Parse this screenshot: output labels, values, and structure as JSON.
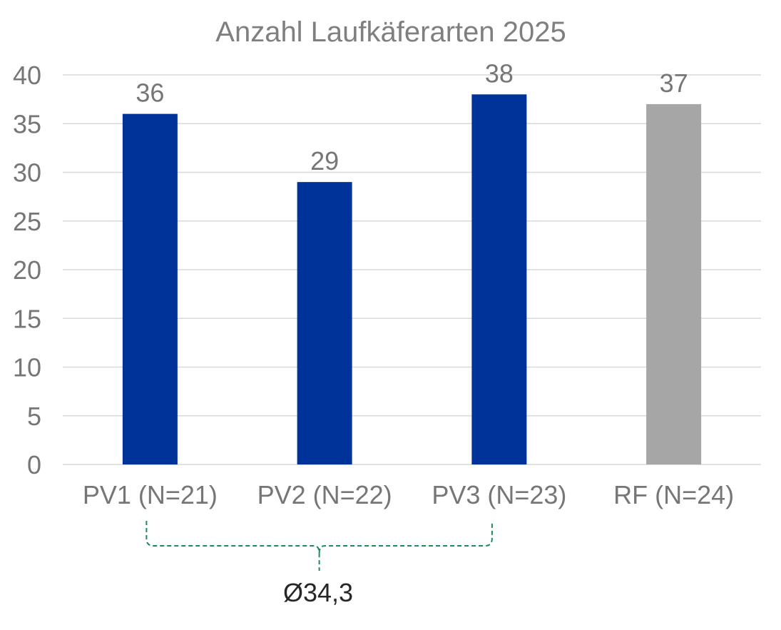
{
  "chart_data": {
    "type": "bar",
    "title": "Anzahl Laufkäferarten 2025",
    "xlabel": "",
    "ylabel": "",
    "categories": [
      "PV1 (N=21)",
      "PV2 (N=22)",
      "PV3 (N=23)",
      "RF (N=24)"
    ],
    "values": [
      36,
      29,
      38,
      37
    ],
    "data_labels": [
      "36",
      "29",
      "38",
      "37"
    ],
    "bar_colors": [
      "#003399",
      "#003399",
      "#003399",
      "#A6A6A6"
    ],
    "ylim": [
      0,
      40
    ],
    "yticks": [
      0,
      5,
      10,
      15,
      20,
      25,
      30,
      35,
      40
    ],
    "ytick_labels": [
      "0",
      "5",
      "10",
      "15",
      "20",
      "25",
      "30",
      "35",
      "40"
    ],
    "grid": true,
    "legend": "none",
    "annotation": {
      "text": "Ø34,3",
      "spans_categories": [
        "PV1 (N=21)",
        "PV3 (N=23)"
      ],
      "style": "dashed-brace",
      "color": "#1E8A5A"
    }
  },
  "colors": {
    "text": "#767676",
    "title": "#7F7F7F",
    "gridline": "#D9D9D9",
    "annotation_text": "#262626"
  }
}
